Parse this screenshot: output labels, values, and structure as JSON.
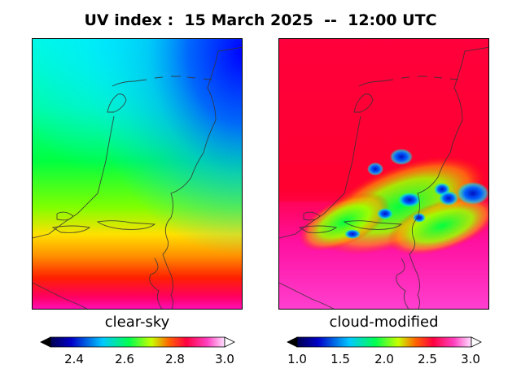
{
  "title": "UV index :  15 March 2025  --  12:00 UTC",
  "panels": {
    "left": {
      "label": "clear-sky",
      "colorbar_ticks": [
        "2.4",
        "2.6",
        "2.8",
        "3.0"
      ]
    },
    "right": {
      "label": "cloud-modified",
      "colorbar_ticks": [
        "1.0",
        "1.5",
        "2.0",
        "2.5",
        "3.0"
      ]
    }
  },
  "colorbar_scale": [
    "#000000",
    "#0000c8",
    "#00c8ff",
    "#00ff50",
    "#c8ff00",
    "#ff6400",
    "#ff0040",
    "#ff40c0",
    "#ffffff"
  ]
}
